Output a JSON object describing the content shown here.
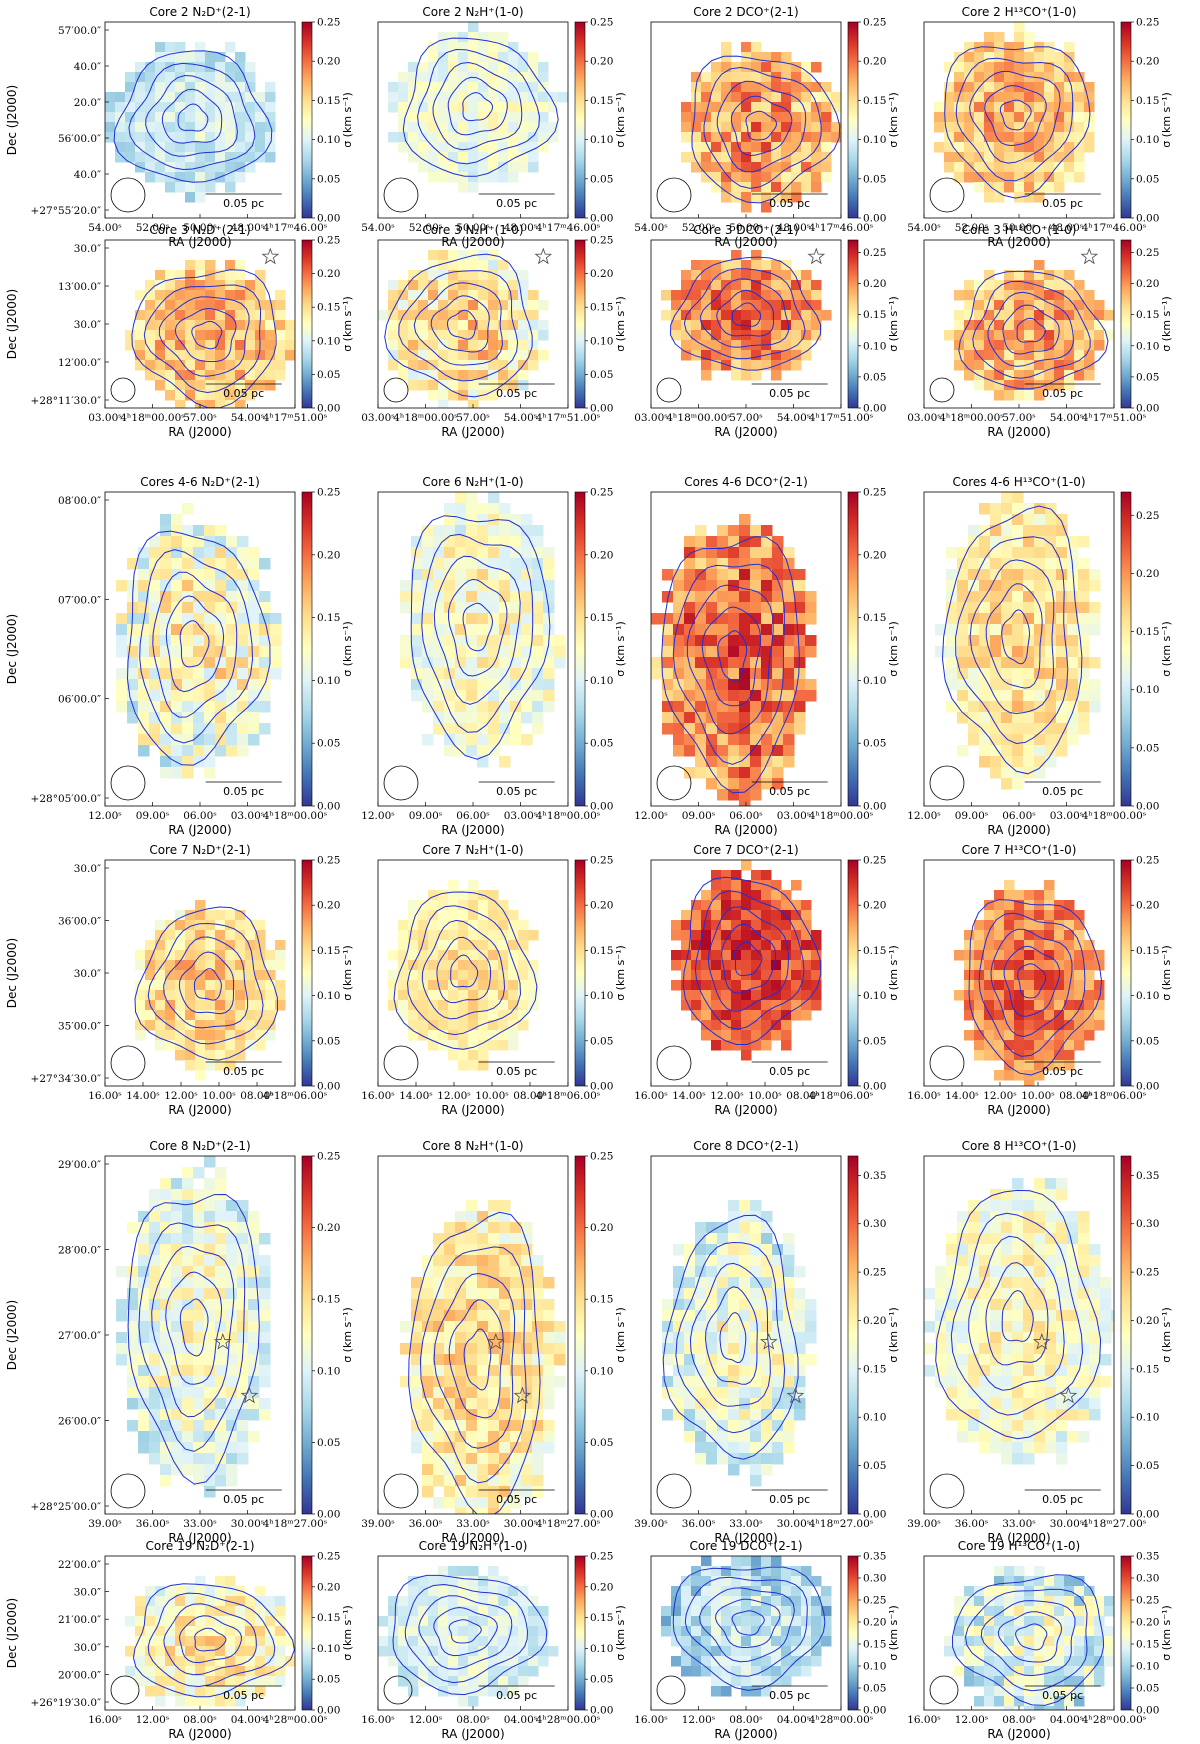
{
  "figure": {
    "colormap": "RdYlBu_r",
    "contour_color": "#1f2fd6",
    "scale_bar_label": "0.05 pc",
    "xlabel": "RA (J2000)",
    "ylabel": "Dec (J2000)",
    "colorbar_label": "σ (km s⁻¹)",
    "marker_icon": "star-icon",
    "beam_icon": "beam-circle"
  },
  "chart_data": [
    {
      "type": "heatmap",
      "row": 0,
      "col": 0,
      "title": "Core 2 N₂D⁺(2-1)",
      "cbar_ticks": [
        "0.00",
        "0.05",
        "0.10",
        "0.15",
        "0.20",
        "0.25"
      ],
      "cbar_max": 0.25,
      "x_ticks": [
        "54.00ˢ",
        "52.00ˢ",
        "50.00ˢ",
        "48.00ˢ",
        "4ʰ17ᵐ46.00ˢ"
      ],
      "y_ticks": [
        "57′00.0″",
        "40.0″",
        "20.0″",
        "56′00.0″",
        "40.0″",
        "+27°55′20.0″"
      ],
      "mean_sigma": 0.09,
      "spread": 0.02,
      "stars": []
    },
    {
      "type": "heatmap",
      "row": 0,
      "col": 1,
      "title": "Core 2 N₂H⁺(1-0)",
      "cbar_ticks": [
        "0.00",
        "0.05",
        "0.10",
        "0.15",
        "0.20",
        "0.25"
      ],
      "cbar_max": 0.25,
      "x_ticks": [
        "54.00ˢ",
        "52.00ˢ",
        "50.00ˢ",
        "48.00ˢ",
        "4ʰ17ᵐ46.00ˢ"
      ],
      "y_ticks": [],
      "mean_sigma": 0.11,
      "spread": 0.02,
      "stars": []
    },
    {
      "type": "heatmap",
      "row": 0,
      "col": 2,
      "title": "Core 2 DCO⁺(2-1)",
      "cbar_ticks": [
        "0.00",
        "0.05",
        "0.10",
        "0.15",
        "0.20",
        "0.25"
      ],
      "cbar_max": 0.25,
      "x_ticks": [
        "54.00ˢ",
        "52.00ˢ",
        "50.00ˢ",
        "48.00ˢ",
        "4ʰ17ᵐ46.00ˢ"
      ],
      "y_ticks": [],
      "mean_sigma": 0.17,
      "spread": 0.04,
      "stars": []
    },
    {
      "type": "heatmap",
      "row": 0,
      "col": 3,
      "title": "Core 2 H¹³CO⁺(1-0)",
      "cbar_ticks": [
        "0.00",
        "0.05",
        "0.10",
        "0.15",
        "0.20",
        "0.25"
      ],
      "cbar_max": 0.25,
      "x_ticks": [
        "54.00ˢ",
        "52.00ˢ",
        "50.00ˢ",
        "48.00ˢ",
        "4ʰ17ᵐ46.00ˢ"
      ],
      "y_ticks": [],
      "mean_sigma": 0.16,
      "spread": 0.03,
      "stars": []
    },
    {
      "type": "heatmap",
      "row": 1,
      "col": 0,
      "title": "Core 3 N₂D⁺(2-1)",
      "cbar_ticks": [
        "0.00",
        "0.05",
        "0.10",
        "0.15",
        "0.20",
        "0.25"
      ],
      "cbar_max": 0.25,
      "x_ticks": [
        "03.00ˢ",
        "4ʰ18ᵐ00.00ˢ",
        "57.00ˢ",
        "54.00ˢ",
        "4ʰ17ᵐ51.00ˢ"
      ],
      "y_ticks": [
        "30.0″",
        "13′00.0″",
        "30.0″",
        "12′00.0″",
        "+28°11′30.0″"
      ],
      "mean_sigma": 0.16,
      "spread": 0.03,
      "stars": [
        [
          0.87,
          0.1
        ]
      ]
    },
    {
      "type": "heatmap",
      "row": 1,
      "col": 1,
      "title": "Core 3 N₂H⁺(1-0)",
      "cbar_ticks": [
        "0.00",
        "0.05",
        "0.10",
        "0.15",
        "0.20",
        "0.25"
      ],
      "cbar_max": 0.25,
      "x_ticks": [
        "03.00ˢ",
        "4ʰ18ᵐ00.00ˢ",
        "57.00ˢ",
        "54.00ˢ",
        "4ʰ17ᵐ51.00ˢ"
      ],
      "y_ticks": [],
      "mean_sigma": 0.14,
      "spread": 0.04,
      "stars": [
        [
          0.87,
          0.1
        ]
      ]
    },
    {
      "type": "heatmap",
      "row": 1,
      "col": 2,
      "title": "Core 3 DCO⁺(2-1)",
      "cbar_ticks": [
        "0.00",
        "0.05",
        "0.10",
        "0.15",
        "0.20",
        "0.25"
      ],
      "cbar_max": 0.27,
      "x_ticks": [
        "03.00ˢ",
        "4ʰ18ᵐ00.00ˢ",
        "57.00ˢ",
        "54.00ˢ",
        "4ʰ17ᵐ51.00ˢ"
      ],
      "y_ticks": [],
      "mean_sigma": 0.2,
      "spread": 0.04,
      "stars": [
        [
          0.87,
          0.1
        ]
      ]
    },
    {
      "type": "heatmap",
      "row": 1,
      "col": 3,
      "title": "Core 3 H¹³CO⁺(1-0)",
      "cbar_ticks": [
        "0.00",
        "0.05",
        "0.10",
        "0.15",
        "0.20",
        "0.25"
      ],
      "cbar_max": 0.27,
      "x_ticks": [
        "03.00ˢ",
        "4ʰ18ᵐ00.00ˢ",
        "57.00ˢ",
        "54.00ˢ",
        "4ʰ17ᵐ51.00ˢ"
      ],
      "y_ticks": [],
      "mean_sigma": 0.18,
      "spread": 0.04,
      "stars": [
        [
          0.87,
          0.1
        ]
      ]
    },
    {
      "type": "heatmap",
      "row": 2,
      "col": 0,
      "title": "Cores 4-6 N₂D⁺(2-1)",
      "cbar_ticks": [
        "0.00",
        "0.05",
        "0.10",
        "0.15",
        "0.20",
        "0.25"
      ],
      "cbar_max": 0.25,
      "x_ticks": [
        "12.00ˢ",
        "09.00ˢ",
        "06.00ˢ",
        "03.00ˢ",
        "4ʰ18ᵐ00.00ˢ"
      ],
      "y_ticks": [
        "08′00.0″",
        "07′00.0″",
        "06′00.0″",
        "+28°05′00.0″"
      ],
      "mean_sigma": 0.12,
      "spread": 0.04,
      "stars": []
    },
    {
      "type": "heatmap",
      "row": 2,
      "col": 1,
      "title": "Core 6 N₂H⁺(1-0)",
      "cbar_ticks": [
        "0.00",
        "0.05",
        "0.10",
        "0.15",
        "0.20",
        "0.25"
      ],
      "cbar_max": 0.25,
      "x_ticks": [
        "12.00ˢ",
        "09.00ˢ",
        "06.00ˢ",
        "03.00ˢ",
        "4ʰ18ᵐ00.00ˢ"
      ],
      "y_ticks": [],
      "mean_sigma": 0.12,
      "spread": 0.03,
      "stars": []
    },
    {
      "type": "heatmap",
      "row": 2,
      "col": 2,
      "title": "Cores 4-6 DCO⁺(2-1)",
      "cbar_ticks": [
        "0.00",
        "0.05",
        "0.10",
        "0.15",
        "0.20",
        "0.25"
      ],
      "cbar_max": 0.25,
      "x_ticks": [
        "12.00ˢ",
        "09.00ˢ",
        "06.00ˢ",
        "03.00ˢ",
        "4ʰ18ᵐ00.00ˢ"
      ],
      "y_ticks": [],
      "mean_sigma": 0.19,
      "spread": 0.04,
      "stars": []
    },
    {
      "type": "heatmap",
      "row": 2,
      "col": 3,
      "title": "Cores 4-6 H¹³CO⁺(1-0)",
      "cbar_ticks": [
        "0.00",
        "0.05",
        "0.10",
        "0.15",
        "0.20",
        "0.25"
      ],
      "cbar_max": 0.27,
      "x_ticks": [
        "12.00ˢ",
        "09.00ˢ",
        "06.00ˢ",
        "03.00ˢ",
        "4ʰ18ᵐ00.00ˢ"
      ],
      "y_ticks": [],
      "mean_sigma": 0.15,
      "spread": 0.03,
      "stars": []
    },
    {
      "type": "heatmap",
      "row": 3,
      "col": 0,
      "title": "Core 7 N₂D⁺(2-1)",
      "cbar_ticks": [
        "0.00",
        "0.05",
        "0.10",
        "0.15",
        "0.20",
        "0.25"
      ],
      "cbar_max": 0.25,
      "x_ticks": [
        "16.00ˢ",
        "14.00ˢ",
        "12.00ˢ",
        "10.00ˢ",
        "08.00ˢ",
        "4ʰ18ᵐ06.00ˢ"
      ],
      "y_ticks": [
        "30.0″",
        "36′00.0″",
        "30.0″",
        "35′00.0″",
        "+27°34′30.0″"
      ],
      "mean_sigma": 0.15,
      "spread": 0.03,
      "stars": []
    },
    {
      "type": "heatmap",
      "row": 3,
      "col": 1,
      "title": "Core 7 N₂H⁺(1-0)",
      "cbar_ticks": [
        "0.00",
        "0.05",
        "0.10",
        "0.15",
        "0.20",
        "0.25"
      ],
      "cbar_max": 0.25,
      "x_ticks": [
        "16.00ˢ",
        "14.00ˢ",
        "12.00ˢ",
        "10.00ˢ",
        "08.00ˢ",
        "4ʰ18ᵐ06.00ˢ"
      ],
      "y_ticks": [],
      "mean_sigma": 0.14,
      "spread": 0.02,
      "stars": []
    },
    {
      "type": "heatmap",
      "row": 3,
      "col": 2,
      "title": "Core 7 DCO⁺(2-1)",
      "cbar_ticks": [
        "0.00",
        "0.05",
        "0.10",
        "0.15",
        "0.20",
        "0.25"
      ],
      "cbar_max": 0.25,
      "x_ticks": [
        "16.00ˢ",
        "14.00ˢ",
        "12.00ˢ",
        "10.00ˢ",
        "08.00ˢ",
        "4ʰ18ᵐ06.00ˢ"
      ],
      "y_ticks": [],
      "mean_sigma": 0.21,
      "spread": 0.03,
      "stars": []
    },
    {
      "type": "heatmap",
      "row": 3,
      "col": 3,
      "title": "Core 7 H¹³CO⁺(1-0)",
      "cbar_ticks": [
        "0.00",
        "0.05",
        "0.10",
        "0.15",
        "0.20",
        "0.25"
      ],
      "cbar_max": 0.25,
      "x_ticks": [
        "16.00ˢ",
        "14.00ˢ",
        "12.00ˢ",
        "10.00ˢ",
        "08.00ˢ",
        "4ʰ18ᵐ06.00ˢ"
      ],
      "y_ticks": [],
      "mean_sigma": 0.19,
      "spread": 0.03,
      "stars": []
    },
    {
      "type": "heatmap",
      "row": 4,
      "col": 0,
      "title": "Core 8 N₂D⁺(2-1)",
      "cbar_ticks": [
        "0.00",
        "0.05",
        "0.10",
        "0.15",
        "0.20",
        "0.25"
      ],
      "cbar_max": 0.25,
      "x_ticks": [
        "39.00ˢ",
        "36.00ˢ",
        "33.00ˢ",
        "30.00ˢ",
        "4ʰ18ᵐ27.00ˢ"
      ],
      "y_ticks": [
        "29′00.0″",
        "28′00.0″",
        "27′00.0″",
        "26′00.0″",
        "+28°25′00.0″"
      ],
      "mean_sigma": 0.11,
      "spread": 0.03,
      "stars": [
        [
          0.62,
          0.52
        ],
        [
          0.76,
          0.67
        ]
      ]
    },
    {
      "type": "heatmap",
      "row": 4,
      "col": 1,
      "title": "Core 8 N₂H⁺(1-0)",
      "cbar_ticks": [
        "0.00",
        "0.05",
        "0.10",
        "0.15",
        "0.20",
        "0.25"
      ],
      "cbar_max": 0.25,
      "x_ticks": [
        "39.00ˢ",
        "36.00ˢ",
        "33.00ˢ",
        "30.00ˢ",
        "4ʰ18ᵐ27.00ˢ"
      ],
      "y_ticks": [],
      "mean_sigma": 0.14,
      "spread": 0.03,
      "stars": [
        [
          0.62,
          0.52
        ],
        [
          0.76,
          0.67
        ]
      ]
    },
    {
      "type": "heatmap",
      "row": 4,
      "col": 2,
      "title": "Core 8 DCO⁺(2-1)",
      "cbar_ticks": [
        "0.00",
        "0.05",
        "0.10",
        "0.15",
        "0.20",
        "0.25",
        "0.30",
        "0.35"
      ],
      "cbar_max": 0.37,
      "x_ticks": [
        "39.00ˢ",
        "36.00ˢ",
        "33.00ˢ",
        "30.00ˢ",
        "4ʰ18ᵐ27.00ˢ"
      ],
      "y_ticks": [],
      "mean_sigma": 0.16,
      "spread": 0.05,
      "stars": [
        [
          0.62,
          0.52
        ],
        [
          0.76,
          0.67
        ]
      ]
    },
    {
      "type": "heatmap",
      "row": 4,
      "col": 3,
      "title": "Core 8 H¹³CO⁺(1-0)",
      "cbar_ticks": [
        "0.00",
        "0.05",
        "0.10",
        "0.15",
        "0.20",
        "0.25",
        "0.30",
        "0.35"
      ],
      "cbar_max": 0.37,
      "x_ticks": [
        "39.00ˢ",
        "36.00ˢ",
        "33.00ˢ",
        "30.00ˢ",
        "4ʰ18ᵐ27.00ˢ"
      ],
      "y_ticks": [],
      "mean_sigma": 0.18,
      "spread": 0.04,
      "stars": [
        [
          0.62,
          0.52
        ],
        [
          0.76,
          0.67
        ]
      ]
    },
    {
      "type": "heatmap",
      "row": 5,
      "col": 0,
      "title": "Core 19 N₂D⁺(2-1)",
      "cbar_ticks": [
        "0.00",
        "0.05",
        "0.10",
        "0.15",
        "0.20",
        "0.25"
      ],
      "cbar_max": 0.25,
      "x_ticks": [
        "16.00ˢ",
        "12.00ˢ",
        "08.00ˢ",
        "04.00ˢ",
        "4ʰ28ᵐ00.00ˢ"
      ],
      "y_ticks": [
        "22′00.0″",
        "30.0″",
        "21′00.0″",
        "30.0″",
        "20′00.0″",
        "+26°19′30.0″"
      ],
      "mean_sigma": 0.13,
      "spread": 0.03,
      "stars": []
    },
    {
      "type": "heatmap",
      "row": 5,
      "col": 1,
      "title": "Core 19 N₂H⁺(1-0)",
      "cbar_ticks": [
        "0.00",
        "0.05",
        "0.10",
        "0.15",
        "0.20",
        "0.25"
      ],
      "cbar_max": 0.25,
      "x_ticks": [
        "16.00ˢ",
        "12.00ˢ",
        "08.00ˢ",
        "04.00ˢ",
        "4ʰ28ᵐ00.00ˢ"
      ],
      "y_ticks": [],
      "mean_sigma": 0.1,
      "spread": 0.02,
      "stars": []
    },
    {
      "type": "heatmap",
      "row": 5,
      "col": 2,
      "title": "Core 19 DCO⁺(2-1)",
      "cbar_ticks": [
        "0.00",
        "0.05",
        "0.10",
        "0.15",
        "0.20",
        "0.25",
        "0.30",
        "0.35"
      ],
      "cbar_max": 0.35,
      "x_ticks": [
        "16.00ˢ",
        "12.00ˢ",
        "08.00ˢ",
        "04.00ˢ",
        "4ʰ28ᵐ00.00ˢ"
      ],
      "y_ticks": [],
      "mean_sigma": 0.11,
      "spread": 0.04,
      "stars": []
    },
    {
      "type": "heatmap",
      "row": 5,
      "col": 3,
      "title": "Core 19 H¹³CO⁺(1-0)",
      "cbar_ticks": [
        "0.00",
        "0.05",
        "0.10",
        "0.15",
        "0.20",
        "0.25",
        "0.30",
        "0.35"
      ],
      "cbar_max": 0.35,
      "x_ticks": [
        "16.00ˢ",
        "12.00ˢ",
        "08.00ˢ",
        "04.00ˢ",
        "4ʰ28ᵐ00.00ˢ"
      ],
      "y_ticks": [],
      "mean_sigma": 0.14,
      "spread": 0.05,
      "stars": []
    }
  ]
}
